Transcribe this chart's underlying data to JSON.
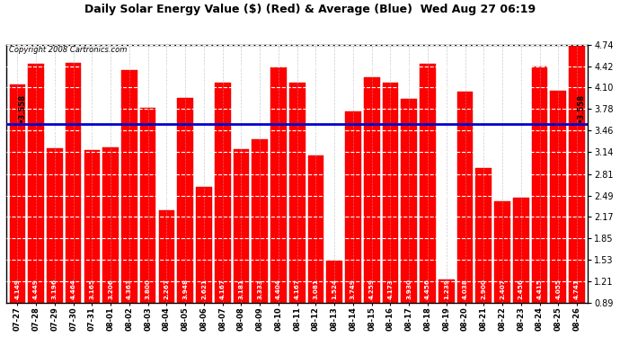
{
  "title": "Daily Solar Energy Value ($) (Red) & Average (Blue)  Wed Aug 27 06:19",
  "copyright": "Copyright 2008 Cartronics.com",
  "bar_color": "#ff0000",
  "average_color": "#0000cc",
  "background_color": "#ffffff",
  "average_value": 3.558,
  "ylim_min": 0.89,
  "ylim_max": 4.74,
  "yticks": [
    0.89,
    1.21,
    1.53,
    1.85,
    2.17,
    2.49,
    2.81,
    3.14,
    3.46,
    3.78,
    4.1,
    4.42,
    4.74
  ],
  "categories": [
    "07-27",
    "07-28",
    "07-29",
    "07-30",
    "07-31",
    "08-01",
    "08-02",
    "08-03",
    "08-04",
    "08-05",
    "08-06",
    "08-07",
    "08-08",
    "08-09",
    "08-10",
    "08-11",
    "08-12",
    "08-13",
    "08-14",
    "08-15",
    "08-16",
    "08-17",
    "08-18",
    "08-19",
    "08-20",
    "08-21",
    "08-22",
    "08-23",
    "08-24",
    "08-25",
    "08-26"
  ],
  "values": [
    4.149,
    4.449,
    3.196,
    4.464,
    3.165,
    3.206,
    4.363,
    3.8,
    2.267,
    3.948,
    2.621,
    4.167,
    3.181,
    3.333,
    4.404,
    4.167,
    3.081,
    1.524,
    3.749,
    4.259,
    4.173,
    3.93,
    4.456,
    1.239,
    4.038,
    2.9,
    2.407,
    2.456,
    4.415,
    4.055,
    4.741
  ]
}
